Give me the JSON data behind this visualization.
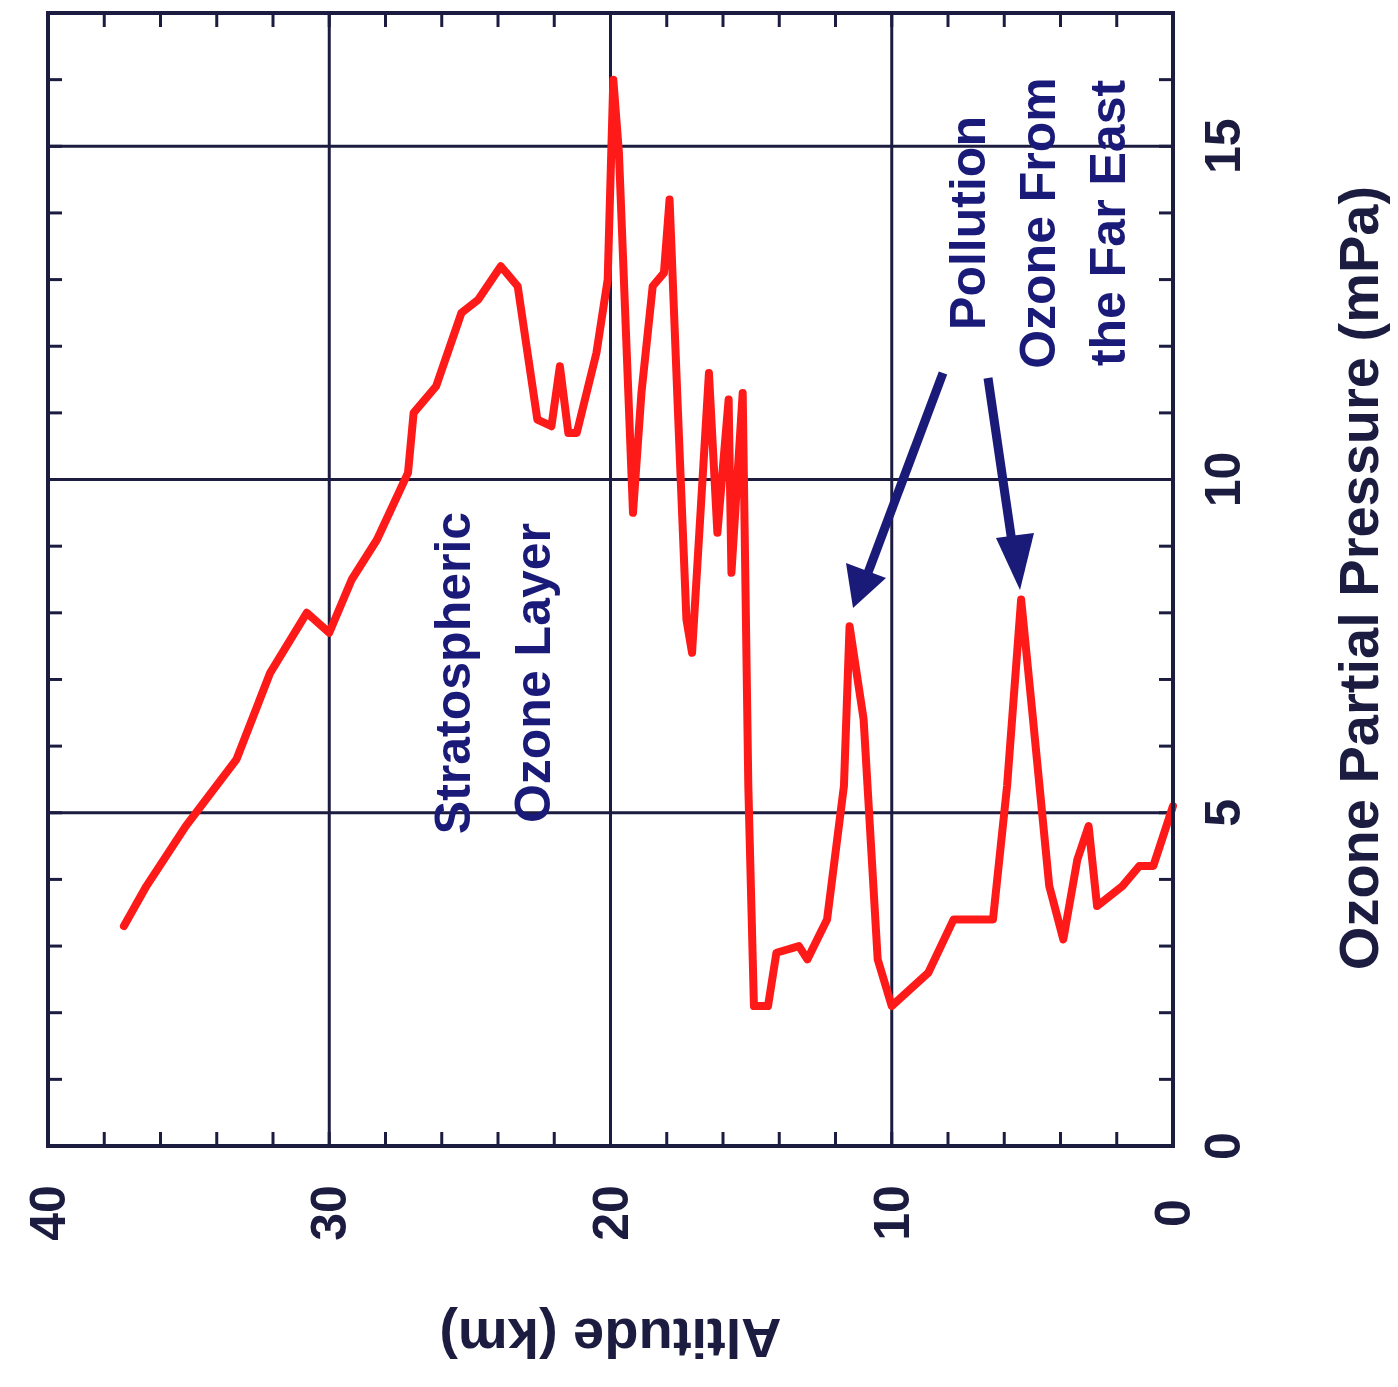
{
  "chart_data": {
    "type": "line",
    "xlabel": "Altitude (km)",
    "ylabel": "Ozone Partial Pressure (mPa)",
    "xlim": [
      40,
      0
    ],
    "ylim": [
      0,
      17
    ],
    "xticks": [
      40,
      {
        "value": 38,
        "label": null
      },
      {
        "value": 36,
        "label": null
      },
      {
        "value": 34,
        "label": null
      },
      {
        "value": 32,
        "label": null
      },
      30,
      {
        "value": 28,
        "label": null
      },
      {
        "value": 26,
        "label": null
      },
      {
        "value": 24,
        "label": null
      },
      {
        "value": 22,
        "label": null
      },
      20,
      {
        "value": 18,
        "label": null
      },
      {
        "value": 16,
        "label": null
      },
      {
        "value": 14,
        "label": null
      },
      {
        "value": 12,
        "label": null
      },
      10,
      {
        "value": 8,
        "label": null
      },
      {
        "value": 6,
        "label": null
      },
      {
        "value": 4,
        "label": null
      },
      {
        "value": 2,
        "label": null
      },
      0
    ],
    "yticks": [
      0,
      {
        "value": 1,
        "label": null
      },
      {
        "value": 2,
        "label": null
      },
      {
        "value": 3,
        "label": null
      },
      {
        "value": 4,
        "label": null
      },
      5,
      {
        "value": 6,
        "label": null
      },
      {
        "value": 7,
        "label": null
      },
      {
        "value": 8,
        "label": null
      },
      {
        "value": 9,
        "label": null
      },
      10,
      {
        "value": 11,
        "label": null
      },
      {
        "value": 12,
        "label": null
      },
      {
        "value": 13,
        "label": null
      },
      {
        "value": 14,
        "label": null
      },
      15,
      {
        "value": 16,
        "label": null
      }
    ],
    "grid": true,
    "line_style": "solid",
    "marker": "none",
    "annotations": [
      "Stratospheric\nOzone Layer",
      "Pollution\nOzone From\nthe Far East"
    ],
    "series": [
      {
        "color": "#ff1a1a",
        "x": [
          37.3,
          36.5,
          35.1,
          33.3,
          32.1,
          30.8,
          30.0,
          29.2,
          28.3,
          27.2,
          27.0,
          26.2,
          25.3,
          24.7,
          23.9,
          23.3,
          22.6,
          22.1,
          21.8,
          21.5,
          21.2,
          20.5,
          20.1,
          19.9,
          19.7,
          19.2,
          18.9,
          18.5,
          18.1,
          17.9,
          17.6,
          17.3,
          17.1,
          16.5,
          16.2,
          15.8,
          15.7,
          15.3,
          15.1,
          14.9,
          14.4,
          14.1,
          13.3,
          13.0,
          12.3,
          11.7,
          11.5,
          11.0,
          10.5,
          10.0,
          8.7,
          7.8,
          6.4,
          5.9,
          5.4,
          5.0,
          4.4,
          3.9,
          3.4,
          3.0,
          2.7,
          1.8,
          1.2,
          0.7,
          0.0
        ],
        "values": [
          3.3,
          3.9,
          4.8,
          5.8,
          7.1,
          8.0,
          7.7,
          8.5,
          9.1,
          10.1,
          11.0,
          11.4,
          12.5,
          12.7,
          13.2,
          12.9,
          10.9,
          10.8,
          11.7,
          10.7,
          10.7,
          11.9,
          13.0,
          16.0,
          14.9,
          9.5,
          11.3,
          12.9,
          13.1,
          14.2,
          11.0,
          7.9,
          7.4,
          11.6,
          9.2,
          11.2,
          8.6,
          11.3,
          5.4,
          2.1,
          2.1,
          2.9,
          3.0,
          2.8,
          3.4,
          5.4,
          7.8,
          6.4,
          2.8,
          2.1,
          2.6,
          3.4,
          3.4,
          5.4,
          8.2,
          6.5,
          3.9,
          3.1,
          4.3,
          4.8,
          3.6,
          3.9,
          4.2,
          4.2,
          5.1
        ]
      }
    ]
  }
}
